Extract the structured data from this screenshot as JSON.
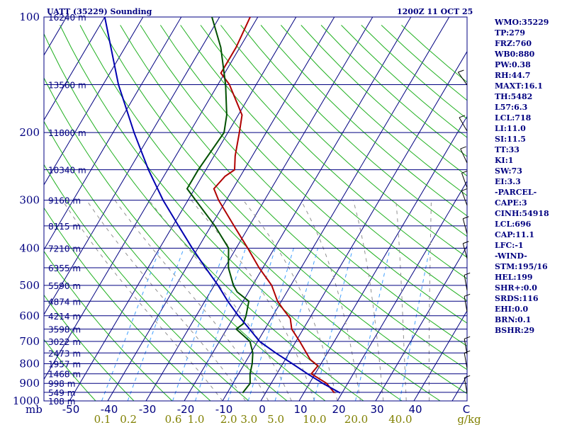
{
  "header": {
    "station_title": "UATT (35229) Sounding",
    "time_title": "1200Z 11 OCT 25"
  },
  "chart_data": {
    "type": "skew-t",
    "title": "UATT (35229) Sounding",
    "pressure_axis": {
      "unit_label": "mb",
      "ticks": [
        100,
        200,
        300,
        400,
        500,
        600,
        700,
        800,
        900,
        1000
      ],
      "range": [
        100,
        1000
      ]
    },
    "temperature_axis": {
      "unit_label": "C",
      "ticks": [
        -50,
        -40,
        -30,
        -20,
        -10,
        0,
        10,
        20,
        30,
        40
      ],
      "tick_labels": [
        "-50",
        "-40",
        "-30",
        "-20",
        "-10",
        "0",
        "10",
        "20",
        "30",
        "40"
      ]
    },
    "mixing_ratio_axis": {
      "unit_label": "g/kg",
      "values": [
        0.1,
        0.2,
        0.6,
        1.0,
        2.0,
        3.0,
        5.0,
        10.0,
        20.0,
        40.0
      ],
      "labels": [
        "0.1",
        "0.2",
        "0.6",
        "1.0",
        "2.0",
        "3.0",
        "5.0",
        "10.0",
        "20.0",
        "40.0"
      ]
    },
    "height_levels": [
      {
        "p": 100,
        "label": "16240 m"
      },
      {
        "p": 150,
        "label": "13560 m"
      },
      {
        "p": 200,
        "label": "11800 m"
      },
      {
        "p": 250,
        "label": "10340 m"
      },
      {
        "p": 300,
        "label": "9160 m"
      },
      {
        "p": 350,
        "label": "8115 m"
      },
      {
        "p": 400,
        "label": "7210 m"
      },
      {
        "p": 450,
        "label": "6355 m"
      },
      {
        "p": 500,
        "label": "5590 m"
      },
      {
        "p": 550,
        "label": "4874 m"
      },
      {
        "p": 600,
        "label": "4214 m"
      },
      {
        "p": 650,
        "label": "3598 m"
      },
      {
        "p": 700,
        "label": "3022 m"
      },
      {
        "p": 750,
        "label": "2473 m"
      },
      {
        "p": 800,
        "label": "1957 m"
      },
      {
        "p": 850,
        "label": "1468 m"
      },
      {
        "p": 900,
        "label": "998 m"
      },
      {
        "p": 950,
        "label": "549 m"
      },
      {
        "p": 1000,
        "label": "108 m"
      }
    ],
    "series": [
      {
        "name": "temperature",
        "color": "#b00000",
        "points": [
          [
            953,
            18.0
          ],
          [
            900,
            14.5
          ],
          [
            850,
            9.0
          ],
          [
            810,
            9.5
          ],
          [
            780,
            6.5
          ],
          [
            750,
            4.5
          ],
          [
            700,
            1.0
          ],
          [
            650,
            -3.0
          ],
          [
            610,
            -5.0
          ],
          [
            580,
            -8.0
          ],
          [
            550,
            -11.0
          ],
          [
            500,
            -15.0
          ],
          [
            450,
            -21.0
          ],
          [
            400,
            -27.0
          ],
          [
            350,
            -34.0
          ],
          [
            300,
            -42.0
          ],
          [
            280,
            -45.0
          ],
          [
            260,
            -44.0
          ],
          [
            250,
            -42.5
          ],
          [
            230,
            -44.5
          ],
          [
            200,
            -47.0
          ],
          [
            180,
            -49.0
          ],
          [
            150,
            -57.0
          ],
          [
            140,
            -61.0
          ],
          [
            120,
            -61.0
          ],
          [
            100,
            -62.0
          ]
        ]
      },
      {
        "name": "dewpoint",
        "color": "#005000",
        "points": [
          [
            953,
            -6.0
          ],
          [
            900,
            -5.5
          ],
          [
            850,
            -7.0
          ],
          [
            800,
            -8.0
          ],
          [
            750,
            -9.5
          ],
          [
            700,
            -12.0
          ],
          [
            650,
            -17.5
          ],
          [
            630,
            -16.5
          ],
          [
            600,
            -17.0
          ],
          [
            550,
            -18.5
          ],
          [
            520,
            -23.0
          ],
          [
            500,
            -25.0
          ],
          [
            450,
            -29.0
          ],
          [
            400,
            -32.0
          ],
          [
            350,
            -39.0
          ],
          [
            300,
            -48.0
          ],
          [
            280,
            -52.0
          ],
          [
            250,
            -52.0
          ],
          [
            200,
            -51.0
          ],
          [
            180,
            -53.0
          ],
          [
            150,
            -58.0
          ],
          [
            120,
            -65.0
          ],
          [
            100,
            -72.0
          ]
        ]
      },
      {
        "name": "parcel",
        "color": "#0000b0",
        "points": [
          [
            953,
            19.5
          ],
          [
            900,
            13.5
          ],
          [
            850,
            8.0
          ],
          [
            800,
            2.5
          ],
          [
            750,
            -3.5
          ],
          [
            700,
            -9.5
          ],
          [
            650,
            -14.0
          ],
          [
            600,
            -19.0
          ],
          [
            550,
            -24.0
          ],
          [
            500,
            -29.0
          ],
          [
            450,
            -35.0
          ],
          [
            400,
            -41.5
          ],
          [
            350,
            -48.5
          ],
          [
            300,
            -56.5
          ],
          [
            250,
            -65.0
          ],
          [
            200,
            -74.5
          ],
          [
            150,
            -86.0
          ],
          [
            100,
            -100.0
          ]
        ]
      }
    ]
  },
  "indices": [
    "WMO:35229",
    "TP:279",
    "FRZ:760",
    "WB0:880",
    "PW:0.38",
    "RH:44.7",
    "MAXT:16.1",
    "TH:5482",
    "L57:6.3",
    "LCL:718",
    "LI:11.0",
    "SI:11.5",
    "TT:33",
    "KI:1",
    "SW:73",
    "EI:3.3",
    "-PARCEL-",
    "CAPE:3",
    "CINH:54918",
    "LCL:696",
    "CAP:11.1",
    "LFC:-1",
    "-WIND-",
    "STM:195/16",
    "HEL:199",
    "SHR+:0.0",
    "SRDS:116",
    "EHI:0.0",
    "BRN:0.1",
    "BSHR:29"
  ]
}
